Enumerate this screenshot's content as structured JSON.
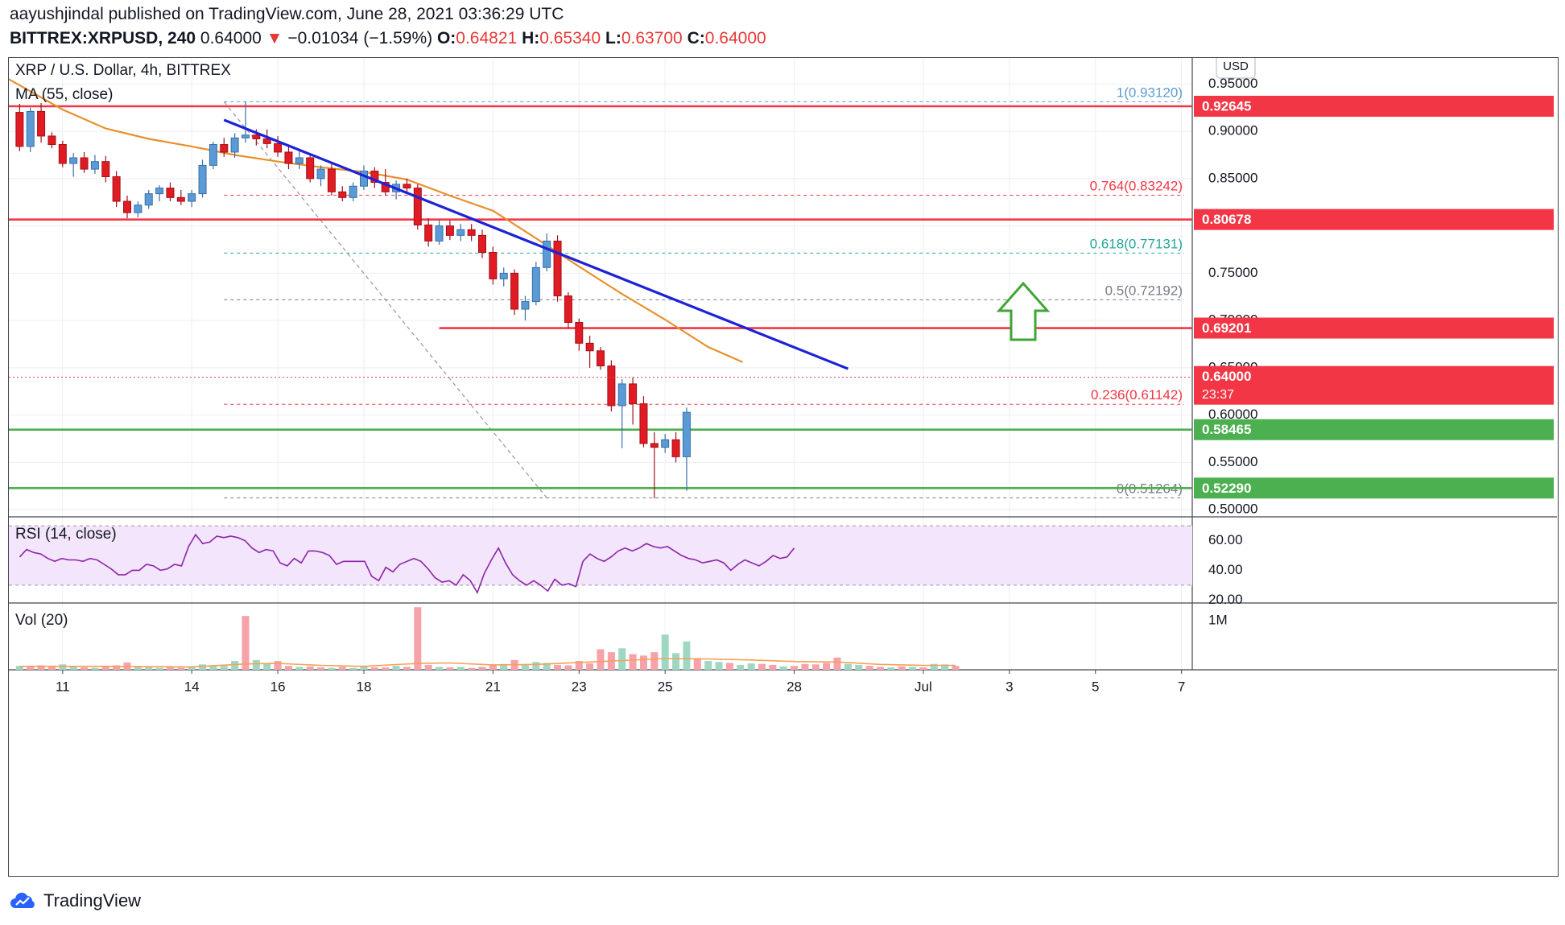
{
  "header": {
    "published_line": "aayushjindal published on TradingView.com, June 28, 2021 03:36:29 UTC",
    "symbol": "BITTREX:XRPUSD, 240",
    "last": "0.64000",
    "change": "−0.01034 (−1.59%)",
    "open_label": "O:",
    "open": "0.64821",
    "high_label": "H:",
    "high": "0.65340",
    "low_label": "L:",
    "low": "0.63700",
    "close_label": "C:",
    "close": "0.64000"
  },
  "chart_data": {
    "type": "candlestick",
    "title": "XRP / U.S. Dollar, 4h, BITTREX",
    "indicator_ma": "MA (55, close)",
    "currency": "USD",
    "y_ticks": [
      "0.95000",
      "0.90000",
      "0.85000",
      "0.80000",
      "0.75000",
      "0.70000",
      "0.65000",
      "0.60000",
      "0.55000",
      "0.50000"
    ],
    "ylim": [
      0.4925,
      0.9775
    ],
    "x_ticks": [
      {
        "label": "11",
        "day": 11
      },
      {
        "label": "14",
        "day": 14
      },
      {
        "label": "16",
        "day": 16
      },
      {
        "label": "18",
        "day": 18
      },
      {
        "label": "21",
        "day": 21
      },
      {
        "label": "23",
        "day": 23
      },
      {
        "label": "25",
        "day": 25
      },
      {
        "label": "28",
        "day": 28
      },
      {
        "label": "Jul",
        "day": 31
      },
      {
        "label": "3",
        "day": 33
      },
      {
        "label": "5",
        "day": 35
      },
      {
        "label": "7",
        "day": 37
      }
    ],
    "xlim_days": [
      9.75,
      37.25
    ],
    "price_levels": [
      {
        "label": "0.92645",
        "value": 0.92645,
        "color": "#f23645"
      },
      {
        "label": "0.80678",
        "value": 0.80678,
        "color": "#f23645"
      },
      {
        "label": "0.69201",
        "value": 0.69201,
        "color": "#f23645"
      },
      {
        "label": "0.58465",
        "value": 0.58465,
        "color": "#4caf50"
      },
      {
        "label": "0.52290",
        "value": 0.5229,
        "color": "#4caf50"
      }
    ],
    "last_price_label": "0.64000",
    "last_price": 0.64,
    "countdown": "23:37",
    "fib_levels": [
      {
        "label": "1(0.93120)",
        "value": 0.9312,
        "color": "#5b9bd5"
      },
      {
        "label": "0.764(0.83242)",
        "value": 0.83242,
        "color": "#f23645"
      },
      {
        "label": "0.618(0.77131)",
        "value": 0.77131,
        "color": "#26a69a"
      },
      {
        "label": "0.5(0.72192)",
        "value": 0.72192,
        "color": "#787b86"
      },
      {
        "label": "0.236(0.61142)",
        "value": 0.61142,
        "color": "#f23645"
      },
      {
        "label": "0(0.51264)",
        "value": 0.51264,
        "color": "#787b86"
      }
    ],
    "trendline": {
      "from": {
        "day": 14.75,
        "price": 0.912
      },
      "to": {
        "day": 29.25,
        "price": 0.649
      },
      "color": "#1e22d6"
    },
    "fib_diagonal": {
      "from": {
        "day": 14.75,
        "price": 0.9312
      },
      "to": {
        "day": 22.25,
        "price": 0.51264
      }
    },
    "moving_average": [
      [
        9.75,
        0.955
      ],
      [
        11,
        0.923
      ],
      [
        12,
        0.903
      ],
      [
        13,
        0.892
      ],
      [
        14,
        0.884
      ],
      [
        15,
        0.875
      ],
      [
        16,
        0.868
      ],
      [
        17,
        0.862
      ],
      [
        18,
        0.857
      ],
      [
        19,
        0.849
      ],
      [
        20,
        0.832
      ],
      [
        21,
        0.816
      ],
      [
        22,
        0.787
      ],
      [
        23,
        0.757
      ],
      [
        24,
        0.728
      ],
      [
        25,
        0.701
      ],
      [
        26,
        0.672
      ],
      [
        26.8,
        0.656
      ]
    ],
    "candles": [
      [
        10.0,
        0.92,
        0.929,
        0.879,
        0.884
      ],
      [
        10.25,
        0.884,
        0.925,
        0.878,
        0.921
      ],
      [
        10.5,
        0.921,
        0.93,
        0.888,
        0.895
      ],
      [
        10.75,
        0.895,
        0.899,
        0.882,
        0.886
      ],
      [
        11.0,
        0.886,
        0.89,
        0.862,
        0.866
      ],
      [
        11.25,
        0.866,
        0.877,
        0.852,
        0.872
      ],
      [
        11.5,
        0.872,
        0.878,
        0.856,
        0.86
      ],
      [
        11.75,
        0.86,
        0.875,
        0.855,
        0.868
      ],
      [
        12.0,
        0.868,
        0.874,
        0.846,
        0.852
      ],
      [
        12.25,
        0.852,
        0.858,
        0.82,
        0.826
      ],
      [
        12.5,
        0.826,
        0.832,
        0.808,
        0.814
      ],
      [
        12.75,
        0.814,
        0.826,
        0.809,
        0.822
      ],
      [
        13.0,
        0.822,
        0.838,
        0.818,
        0.834
      ],
      [
        13.25,
        0.834,
        0.843,
        0.826,
        0.84
      ],
      [
        13.5,
        0.84,
        0.846,
        0.826,
        0.83
      ],
      [
        13.75,
        0.83,
        0.838,
        0.822,
        0.826
      ],
      [
        14.0,
        0.826,
        0.838,
        0.82,
        0.834
      ],
      [
        14.25,
        0.834,
        0.87,
        0.83,
        0.864
      ],
      [
        14.5,
        0.864,
        0.889,
        0.86,
        0.886
      ],
      [
        14.75,
        0.886,
        0.893,
        0.873,
        0.878
      ],
      [
        15.0,
        0.878,
        0.898,
        0.872,
        0.893
      ],
      [
        15.25,
        0.893,
        0.931,
        0.888,
        0.896
      ],
      [
        15.5,
        0.896,
        0.902,
        0.885,
        0.892
      ],
      [
        15.75,
        0.892,
        0.902,
        0.882,
        0.887
      ],
      [
        16.0,
        0.887,
        0.895,
        0.873,
        0.878
      ],
      [
        16.25,
        0.878,
        0.884,
        0.86,
        0.866
      ],
      [
        16.5,
        0.866,
        0.88,
        0.86,
        0.872
      ],
      [
        16.75,
        0.872,
        0.876,
        0.846,
        0.85
      ],
      [
        17.0,
        0.85,
        0.864,
        0.842,
        0.86
      ],
      [
        17.25,
        0.86,
        0.866,
        0.832,
        0.836
      ],
      [
        17.5,
        0.836,
        0.842,
        0.826,
        0.83
      ],
      [
        17.75,
        0.83,
        0.846,
        0.826,
        0.842
      ],
      [
        18.0,
        0.842,
        0.864,
        0.838,
        0.858
      ],
      [
        18.25,
        0.858,
        0.862,
        0.84,
        0.846
      ],
      [
        18.5,
        0.846,
        0.86,
        0.832,
        0.836
      ],
      [
        18.75,
        0.836,
        0.848,
        0.828,
        0.844
      ],
      [
        19.0,
        0.844,
        0.85,
        0.834,
        0.84
      ],
      [
        19.25,
        0.84,
        0.844,
        0.796,
        0.801
      ],
      [
        19.5,
        0.801,
        0.808,
        0.778,
        0.784
      ],
      [
        19.75,
        0.784,
        0.806,
        0.78,
        0.8
      ],
      [
        20.0,
        0.8,
        0.806,
        0.785,
        0.79
      ],
      [
        20.25,
        0.79,
        0.802,
        0.784,
        0.796
      ],
      [
        20.5,
        0.796,
        0.802,
        0.784,
        0.79
      ],
      [
        20.75,
        0.79,
        0.796,
        0.766,
        0.772
      ],
      [
        21.0,
        0.772,
        0.778,
        0.738,
        0.744
      ],
      [
        21.25,
        0.744,
        0.756,
        0.736,
        0.75
      ],
      [
        21.5,
        0.75,
        0.754,
        0.706,
        0.712
      ],
      [
        21.75,
        0.712,
        0.726,
        0.7,
        0.72
      ],
      [
        22.0,
        0.72,
        0.762,
        0.716,
        0.756
      ],
      [
        22.25,
        0.756,
        0.792,
        0.752,
        0.784
      ],
      [
        22.5,
        0.784,
        0.79,
        0.72,
        0.726
      ],
      [
        22.75,
        0.726,
        0.73,
        0.692,
        0.698
      ],
      [
        23.0,
        0.698,
        0.702,
        0.668,
        0.676
      ],
      [
        23.25,
        0.676,
        0.684,
        0.65,
        0.668
      ],
      [
        23.5,
        0.668,
        0.672,
        0.648,
        0.652
      ],
      [
        23.75,
        0.652,
        0.658,
        0.604,
        0.61
      ],
      [
        24.0,
        0.61,
        0.638,
        0.565,
        0.633
      ],
      [
        24.25,
        0.633,
        0.64,
        0.59,
        0.612
      ],
      [
        24.5,
        0.612,
        0.62,
        0.566,
        0.57
      ],
      [
        24.75,
        0.57,
        0.582,
        0.512,
        0.566
      ],
      [
        25.0,
        0.566,
        0.58,
        0.56,
        0.574
      ],
      [
        25.25,
        0.574,
        0.582,
        0.55,
        0.556
      ],
      [
        25.5,
        0.556,
        0.608,
        0.52,
        0.603
      ]
    ]
  },
  "chart_data_note": "candles are [day, open, high, low, close] in data units",
  "chart_data_extra": {},
  "rsi": {
    "label": "RSI (14, close)",
    "ticks": [
      "60.00",
      "40.00",
      "20.00"
    ],
    "band": [
      30,
      70
    ],
    "ylim": [
      18,
      76
    ],
    "values": [
      49,
      54,
      52,
      51,
      48,
      46,
      48,
      47,
      47,
      46,
      48,
      47,
      44,
      41,
      37,
      37,
      40,
      40,
      44,
      43,
      40,
      41,
      44,
      43,
      56,
      64,
      58,
      59,
      63,
      62,
      63,
      62,
      60,
      55,
      52,
      54,
      53,
      45,
      43,
      48,
      45,
      53,
      53,
      52,
      50,
      44,
      46,
      46,
      46,
      46,
      36,
      33,
      42,
      39,
      44,
      46,
      48,
      46,
      41,
      35,
      32,
      33,
      30,
      37,
      33,
      25,
      38,
      47,
      55,
      45,
      37,
      33,
      30,
      33,
      30,
      26,
      34,
      30,
      31,
      29,
      46,
      51,
      48,
      46,
      49,
      53,
      55,
      53,
      55,
      58,
      56,
      55,
      56,
      53,
      50,
      48,
      47,
      45,
      46,
      47,
      45,
      40,
      44,
      47,
      45,
      43,
      46,
      50,
      48,
      49,
      55
    ]
  },
  "volume": {
    "label": "Vol (20)",
    "tick": "1M",
    "ylim": [
      0,
      1300000
    ],
    "bars": [
      [
        10.0,
        80000,
        "u"
      ],
      [
        10.25,
        60000,
        "d"
      ],
      [
        10.5,
        90000,
        "d"
      ],
      [
        10.75,
        60000,
        "d"
      ],
      [
        11.0,
        110000,
        "u"
      ],
      [
        11.25,
        60000,
        "u"
      ],
      [
        11.5,
        50000,
        "d"
      ],
      [
        11.75,
        40000,
        "u"
      ],
      [
        12.0,
        60000,
        "d"
      ],
      [
        12.25,
        90000,
        "d"
      ],
      [
        12.5,
        150000,
        "d"
      ],
      [
        12.75,
        60000,
        "u"
      ],
      [
        13.0,
        50000,
        "u"
      ],
      [
        13.25,
        40000,
        "u"
      ],
      [
        13.5,
        60000,
        "d"
      ],
      [
        13.75,
        40000,
        "d"
      ],
      [
        14.0,
        70000,
        "u"
      ],
      [
        14.25,
        110000,
        "u"
      ],
      [
        14.5,
        90000,
        "u"
      ],
      [
        14.75,
        80000,
        "u"
      ],
      [
        15.0,
        180000,
        "u"
      ],
      [
        15.25,
        1100000,
        "d"
      ],
      [
        15.5,
        200000,
        "u"
      ],
      [
        15.75,
        120000,
        "u"
      ],
      [
        16.0,
        180000,
        "d"
      ],
      [
        16.25,
        80000,
        "d"
      ],
      [
        16.5,
        60000,
        "u"
      ],
      [
        16.75,
        70000,
        "d"
      ],
      [
        17.0,
        50000,
        "d"
      ],
      [
        17.25,
        40000,
        "u"
      ],
      [
        17.5,
        60000,
        "d"
      ],
      [
        17.75,
        40000,
        "u"
      ],
      [
        18.0,
        70000,
        "u"
      ],
      [
        18.25,
        50000,
        "d"
      ],
      [
        18.5,
        50000,
        "d"
      ],
      [
        18.75,
        80000,
        "u"
      ],
      [
        19.0,
        60000,
        "d"
      ],
      [
        19.25,
        1280000,
        "d"
      ],
      [
        19.5,
        100000,
        "d"
      ],
      [
        19.75,
        60000,
        "u"
      ],
      [
        20.0,
        50000,
        "d"
      ],
      [
        20.25,
        60000,
        "u"
      ],
      [
        20.5,
        40000,
        "d"
      ],
      [
        20.75,
        60000,
        "d"
      ],
      [
        21.0,
        90000,
        "d"
      ],
      [
        21.25,
        120000,
        "u"
      ],
      [
        21.5,
        200000,
        "d"
      ],
      [
        21.75,
        100000,
        "u"
      ],
      [
        22.0,
        160000,
        "u"
      ],
      [
        22.25,
        140000,
        "u"
      ],
      [
        22.5,
        100000,
        "d"
      ],
      [
        22.75,
        90000,
        "d"
      ],
      [
        23.0,
        180000,
        "d"
      ],
      [
        23.25,
        130000,
        "d"
      ],
      [
        23.5,
        420000,
        "d"
      ],
      [
        23.75,
        360000,
        "d"
      ],
      [
        24.0,
        440000,
        "u"
      ],
      [
        24.25,
        320000,
        "d"
      ],
      [
        24.5,
        290000,
        "d"
      ],
      [
        24.75,
        360000,
        "d"
      ],
      [
        25.0,
        720000,
        "u"
      ],
      [
        25.25,
        340000,
        "u"
      ],
      [
        25.5,
        580000,
        "u"
      ],
      [
        25.75,
        240000,
        "d"
      ],
      [
        26.0,
        180000,
        "u"
      ],
      [
        26.25,
        160000,
        "u"
      ],
      [
        26.5,
        140000,
        "d"
      ],
      [
        26.75,
        100000,
        "u"
      ],
      [
        27.0,
        130000,
        "u"
      ],
      [
        27.25,
        120000,
        "d"
      ],
      [
        27.5,
        100000,
        "d"
      ],
      [
        27.75,
        70000,
        "u"
      ],
      [
        28.0,
        80000,
        "d"
      ],
      [
        28.25,
        120000,
        "d"
      ],
      [
        28.5,
        110000,
        "d"
      ],
      [
        28.75,
        140000,
        "d"
      ],
      [
        29.0,
        250000,
        "d"
      ],
      [
        29.25,
        120000,
        "u"
      ],
      [
        29.5,
        100000,
        "u"
      ],
      [
        29.75,
        80000,
        "d"
      ],
      [
        30.0,
        60000,
        "d"
      ],
      [
        30.25,
        50000,
        "u"
      ],
      [
        30.5,
        70000,
        "d"
      ],
      [
        30.75,
        60000,
        "u"
      ],
      [
        31.0,
        50000,
        "d"
      ],
      [
        31.25,
        120000,
        "u"
      ],
      [
        31.5,
        110000,
        "u"
      ],
      [
        31.75,
        80000,
        "d"
      ]
    ],
    "ma": [
      [
        10.0,
        70000
      ],
      [
        12.0,
        70000
      ],
      [
        14.0,
        60000
      ],
      [
        15.25,
        120000
      ],
      [
        16.0,
        130000
      ],
      [
        17.0,
        90000
      ],
      [
        18.0,
        70000
      ],
      [
        19.25,
        130000
      ],
      [
        20.0,
        140000
      ],
      [
        21.0,
        100000
      ],
      [
        22.0,
        110000
      ],
      [
        23.0,
        150000
      ],
      [
        24.0,
        190000
      ],
      [
        25.0,
        230000
      ],
      [
        26.0,
        220000
      ],
      [
        27.0,
        200000
      ],
      [
        28.0,
        170000
      ],
      [
        29.0,
        160000
      ],
      [
        30.0,
        110000
      ],
      [
        31.0,
        90000
      ],
      [
        31.75,
        90000
      ]
    ]
  },
  "footer": {
    "brand": "TradingView"
  },
  "colors": {
    "up": "#5b9bd5",
    "up_border": "#3a6ea8",
    "down": "#e01b24",
    "down_border": "#a31118",
    "ma": "#e8912d",
    "rsi_line": "#8e24aa",
    "rsi_band": "#f3e5fb",
    "vol_up": "#9fd8c2",
    "vol_down": "#f6a2a8",
    "vol_ma": "#f5a05a",
    "arrow": "#3fa535",
    "grid": "#eceef2",
    "axis_text": "#131722"
  }
}
